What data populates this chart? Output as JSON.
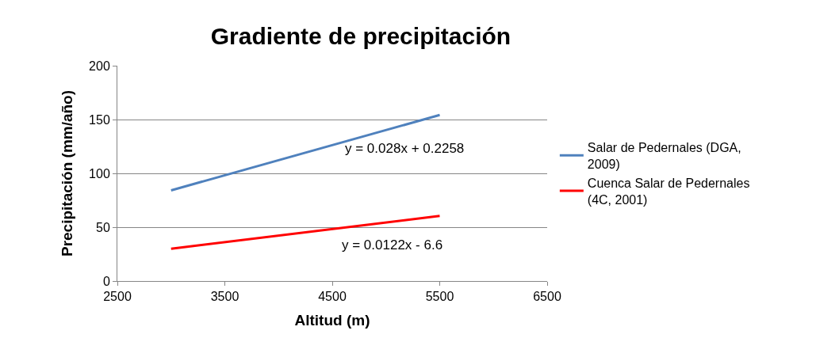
{
  "chart_data": {
    "type": "line",
    "title": "Gradiente de precipitación",
    "xlabel": "Altitud (m)",
    "ylabel": "Precipitación (mm/año)",
    "x": [
      3000,
      5500
    ],
    "series": [
      {
        "name": "Salar de Pedernales (DGA, 2009)",
        "color": "#4f81bd",
        "values": [
          84.2,
          154.2
        ]
      },
      {
        "name": "Cuenca Salar de Pedernales (4C, 2001)",
        "color": "#ff0000",
        "values": [
          30,
          60.5
        ]
      }
    ],
    "annotations": [
      "y = 0.028x + 0.2258",
      "y = 0.0122x - 6.6"
    ],
    "xlim": [
      2500,
      6500
    ],
    "xticks": [
      2500,
      3500,
      4500,
      5500,
      6500
    ],
    "ylim": [
      0,
      200
    ],
    "yticks": [
      0,
      50,
      100,
      150,
      200
    ],
    "grid": "y",
    "legend": "right",
    "marker": "none",
    "line_style": "solid"
  }
}
